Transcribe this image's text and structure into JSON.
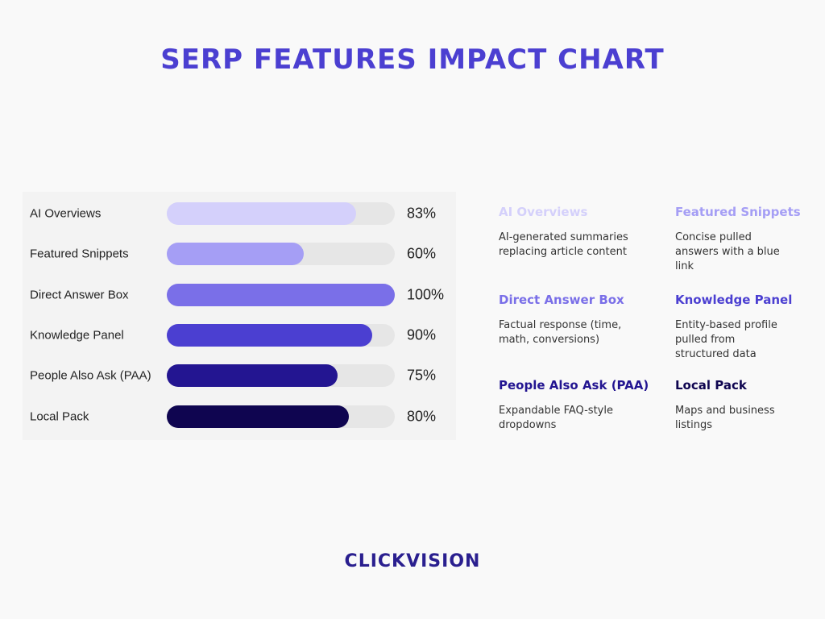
{
  "chart_data": {
    "type": "bar",
    "orientation": "horizontal",
    "title": "SERP FEATURES IMPACT CHART",
    "categories": [
      "AI Overviews",
      "Featured Snippets",
      "Direct Answer Box",
      "Knowledge Panel",
      "People Also Ask (PAA)",
      "Local Pack"
    ],
    "values": [
      83,
      60,
      100,
      90,
      75,
      80
    ],
    "value_labels": [
      "83%",
      "60%",
      "100%",
      "90%",
      "75%",
      "80%"
    ],
    "colors": [
      "#d4d0fb",
      "#a59ef5",
      "#7a6fe8",
      "#4b3fd1",
      "#231591",
      "#0f0550"
    ],
    "xlim": [
      0,
      100
    ],
    "descriptions": [
      "AI-generated summaries replacing article content",
      "Concise pulled answers with a blue link",
      "Factual response (time, math, conversions)",
      "Entity-based profile pulled from structured data",
      "Expandable FAQ-style dropdowns",
      "Maps and business listings"
    ]
  },
  "brand": "CLICKVISION"
}
